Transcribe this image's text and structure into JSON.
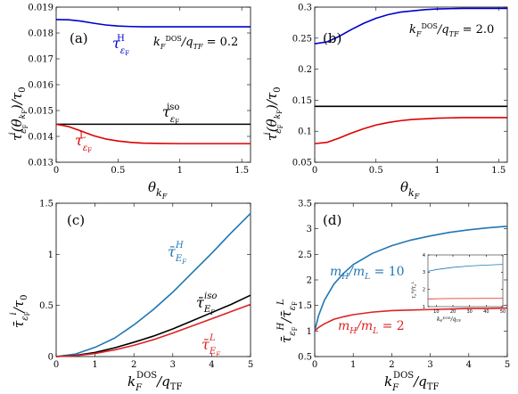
{
  "chart_data": [
    {
      "type": "line",
      "panel_label": "(a)",
      "xlabel": "θ_{k_F}",
      "ylabel": "τ^i_{ε_F}(θ_{k_F})/τ_0",
      "xlim": [
        0,
        1.571
      ],
      "ylim": [
        0.013,
        0.019
      ],
      "xticks": [
        "0",
        "0.5",
        "1",
        "1.5"
      ],
      "yticks": [
        "0.013",
        "0.014",
        "0.015",
        "0.016",
        "0.017",
        "0.018",
        "0.019"
      ],
      "annotation": "k_F^DOS/q_TF = 0.2",
      "x": [
        0,
        0.1,
        0.2,
        0.3,
        0.4,
        0.5,
        0.6,
        0.7,
        0.8,
        1.0,
        1.2,
        1.4,
        1.571
      ],
      "series": [
        {
          "name": "τ^H_{ε_F}",
          "color": "#0000cc",
          "values": [
            0.01852,
            0.01851,
            0.01846,
            0.01838,
            0.01831,
            0.01827,
            0.01825,
            0.01824,
            0.01824,
            0.01824,
            0.01824,
            0.01824,
            0.01824
          ]
        },
        {
          "name": "τ^iso_{ε_F}",
          "color": "#000000",
          "values": [
            0.01447,
            0.01447,
            0.01447,
            0.01447,
            0.01447,
            0.01447,
            0.01447,
            0.01447,
            0.01447,
            0.01447,
            0.01447,
            0.01447,
            0.01447
          ]
        },
        {
          "name": "τ^L_{ε_F}",
          "color": "#dd0000",
          "values": [
            0.01447,
            0.01438,
            0.01421,
            0.01403,
            0.0139,
            0.01382,
            0.01377,
            0.01374,
            0.01373,
            0.01372,
            0.01372,
            0.01372,
            0.01372
          ]
        }
      ]
    },
    {
      "type": "line",
      "panel_label": "(b)",
      "xlabel": "θ_{k_F}",
      "ylabel": "τ^i_{ε_F}(θ_{k_F})/τ_0",
      "xlim": [
        0,
        1.571
      ],
      "ylim": [
        0.05,
        0.3
      ],
      "xticks": [
        "0",
        "0.5",
        "1",
        "1.5"
      ],
      "yticks": [
        "0.05",
        "0.1",
        "0.15",
        "0.2",
        "0.25",
        "0.3"
      ],
      "annotation": "k_F^DOS/q_TF = 2.0",
      "x": [
        0,
        0.1,
        0.2,
        0.3,
        0.4,
        0.5,
        0.6,
        0.7,
        0.8,
        0.9,
        1.0,
        1.2,
        1.4,
        1.571
      ],
      "series": [
        {
          "color": "#0000cc",
          "values": [
            0.241,
            0.244,
            0.253,
            0.264,
            0.274,
            0.282,
            0.288,
            0.292,
            0.294,
            0.296,
            0.297,
            0.298,
            0.298,
            0.298
          ]
        },
        {
          "color": "#000000",
          "values": [
            0.14,
            0.14,
            0.14,
            0.14,
            0.14,
            0.14,
            0.14,
            0.14,
            0.14,
            0.14,
            0.14,
            0.14,
            0.14,
            0.14
          ]
        },
        {
          "color": "#dd0000",
          "values": [
            0.08,
            0.082,
            0.089,
            0.097,
            0.104,
            0.11,
            0.114,
            0.117,
            0.119,
            0.12,
            0.121,
            0.122,
            0.122,
            0.122
          ]
        }
      ]
    },
    {
      "type": "line",
      "panel_label": "(c)",
      "xlabel": "k_F^DOS/q_TF",
      "ylabel": "τ̄_{ε_F}^i/τ_0",
      "xlim": [
        0,
        5
      ],
      "ylim": [
        0,
        1.5
      ],
      "xticks": [
        "0",
        "1",
        "2",
        "3",
        "4",
        "5"
      ],
      "yticks": [
        "0",
        "0.5",
        "1",
        "1.5"
      ],
      "x": [
        0,
        0.5,
        1,
        1.5,
        2,
        2.5,
        3,
        3.5,
        4,
        4.5,
        5
      ],
      "series": [
        {
          "name": "τ̄^H_{E_F}",
          "color": "#1f77b4",
          "values": [
            0,
            0.025,
            0.09,
            0.18,
            0.31,
            0.46,
            0.63,
            0.82,
            1.01,
            1.21,
            1.4
          ]
        },
        {
          "name": "τ̄^iso_{E_F}",
          "color": "#000000",
          "values": [
            0,
            0.012,
            0.04,
            0.085,
            0.14,
            0.2,
            0.27,
            0.35,
            0.43,
            0.51,
            0.6
          ]
        },
        {
          "name": "τ̄^L_{E_F}",
          "color": "#dd2222",
          "values": [
            0,
            0.008,
            0.03,
            0.065,
            0.11,
            0.165,
            0.23,
            0.3,
            0.37,
            0.44,
            0.51
          ]
        }
      ]
    },
    {
      "type": "line",
      "panel_label": "(d)",
      "xlabel": "k_F^DOS/q_TF",
      "ylabel": "τ̄_{ε_F}^H/τ̄_{ε_F}^L",
      "xlim": [
        0,
        5
      ],
      "ylim": [
        0.5,
        3.5
      ],
      "xticks": [
        "0",
        "1",
        "2",
        "3",
        "4",
        "5"
      ],
      "yticks": [
        "0.5",
        "1",
        "1.5",
        "2",
        "2.5",
        "3",
        "3.5"
      ],
      "x": [
        0,
        0.1,
        0.25,
        0.5,
        0.75,
        1,
        1.5,
        2,
        2.5,
        3,
        3.5,
        4,
        4.5,
        5
      ],
      "series": [
        {
          "name": "m_H/m_L = 10",
          "color": "#1f77b4",
          "values": [
            1.0,
            1.3,
            1.6,
            1.92,
            2.13,
            2.3,
            2.52,
            2.67,
            2.78,
            2.86,
            2.93,
            2.98,
            3.02,
            3.05
          ]
        },
        {
          "name": "m_H/m_L = 2",
          "color": "#dd2222",
          "values": [
            1.0,
            1.07,
            1.14,
            1.23,
            1.28,
            1.32,
            1.37,
            1.4,
            1.41,
            1.42,
            1.43,
            1.44,
            1.44,
            1.45
          ]
        }
      ],
      "inset": {
        "xlabel": "k_F^DOS/q_TF",
        "ylabel": "τ^H_{ε_F}/τ^L_{ε_F}",
        "xlim": [
          5,
          50
        ],
        "ylim": [
          1,
          4
        ],
        "xticks": [
          "10",
          "20",
          "30",
          "40",
          "50"
        ],
        "yticks": [
          "1",
          "2",
          "3",
          "4"
        ],
        "x": [
          5,
          10,
          20,
          30,
          40,
          50
        ],
        "series": [
          {
            "color": "#1f77b4",
            "values": [
              3.05,
              3.15,
              3.28,
              3.36,
              3.41,
              3.45
            ]
          },
          {
            "color": "#dd2222",
            "values": [
              1.45,
              1.46,
              1.47,
              1.47,
              1.48,
              1.48
            ]
          }
        ]
      }
    }
  ]
}
